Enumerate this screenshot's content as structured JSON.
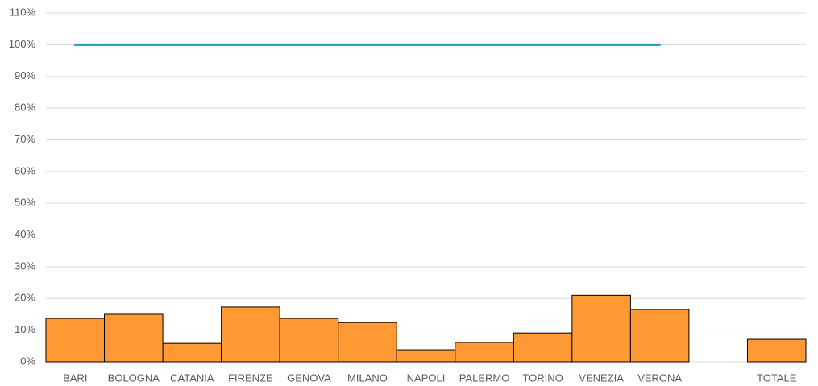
{
  "chart_data": {
    "type": "bar",
    "categories": [
      "BARI",
      "BOLOGNA",
      "CATANIA",
      "FIRENZE",
      "GENOVA",
      "MILANO",
      "NAPOLI",
      "PALERMO",
      "TORINO",
      "VENEZIA",
      "VERONA",
      null,
      "TOTALE"
    ],
    "series": [
      {
        "type": "bar",
        "color": "#ff9933",
        "values": [
          13.7,
          15,
          5.8,
          17.3,
          13.7,
          12.4,
          3.8,
          6.1,
          9.1,
          21,
          16.5,
          null,
          7.1
        ]
      },
      {
        "type": "line",
        "color": "#1a9fc4",
        "values": [
          100,
          100,
          100,
          100,
          100,
          100,
          100,
          100,
          100,
          100,
          100,
          null,
          null
        ]
      }
    ],
    "ylim": [
      0,
      110
    ],
    "yticks": [
      {
        "value": 0,
        "label": "0%"
      },
      {
        "value": 10,
        "label": "10%"
      },
      {
        "value": 20,
        "label": "20%"
      },
      {
        "value": 30,
        "label": "30%"
      },
      {
        "value": 40,
        "label": "40%"
      },
      {
        "value": 50,
        "label": "50%"
      },
      {
        "value": 60,
        "label": "60%"
      },
      {
        "value": 70,
        "label": "70%"
      },
      {
        "value": 80,
        "label": "80%"
      },
      {
        "value": 90,
        "label": "90%"
      },
      {
        "value": 100,
        "label": "100%"
      },
      {
        "value": 110,
        "label": "110%"
      }
    ],
    "grid": true
  }
}
